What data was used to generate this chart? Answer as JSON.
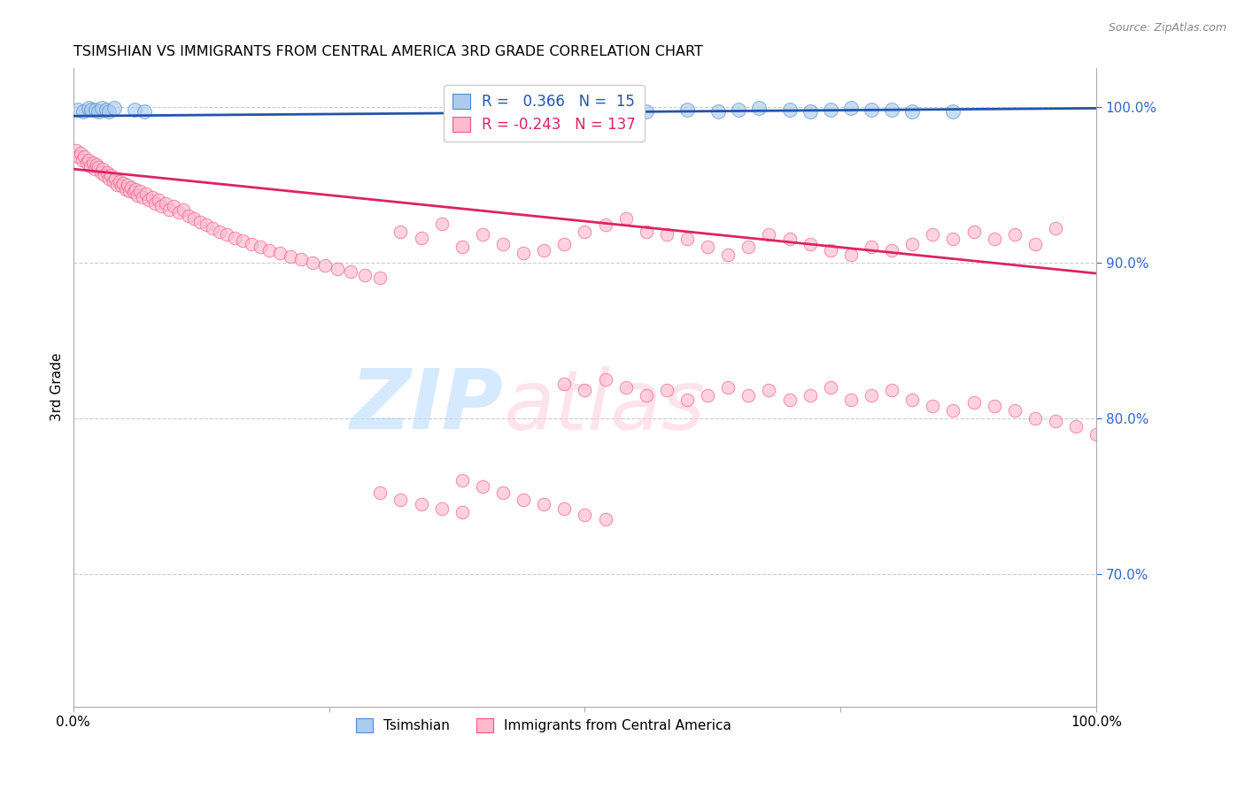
{
  "title": "TSIMSHIAN VS IMMIGRANTS FROM CENTRAL AMERICA 3RD GRADE CORRELATION CHART",
  "source": "Source: ZipAtlas.com",
  "ylabel": "3rd Grade",
  "xlim": [
    0.0,
    1.0
  ],
  "ylim": [
    0.615,
    1.025
  ],
  "right_yticks": [
    0.7,
    0.8,
    0.9,
    1.0
  ],
  "right_yticklabels": [
    "70.0%",
    "80.0%",
    "90.0%",
    "100.0%"
  ],
  "legend_color1": "#aaccee",
  "legend_color2": "#ffbbcc",
  "line_color1": "#2255aa",
  "line_color2": "#dd2266",
  "scatter_color1": "#aaccee",
  "scatter_color2": "#ffbbcc",
  "scatter_edge1": "#5588cc",
  "scatter_edge2": "#ee5588",
  "grid_color": "#cccccc",
  "blue_line_y0": 0.994,
  "blue_line_y1": 0.999,
  "pink_line_y0": 0.96,
  "pink_line_y1": 0.893,
  "blue_x": [
    0.005,
    0.01,
    0.015,
    0.018,
    0.022,
    0.025,
    0.028,
    0.032,
    0.035,
    0.04,
    0.06,
    0.07,
    0.56,
    0.6,
    0.63,
    0.65,
    0.67,
    0.7,
    0.72,
    0.74,
    0.76,
    0.78,
    0.8,
    0.82,
    0.86
  ],
  "blue_y": [
    0.998,
    0.997,
    0.999,
    0.998,
    0.998,
    0.997,
    0.999,
    0.998,
    0.997,
    0.999,
    0.998,
    0.997,
    0.997,
    0.998,
    0.997,
    0.998,
    0.999,
    0.998,
    0.997,
    0.998,
    0.999,
    0.998,
    0.998,
    0.997,
    0.997
  ],
  "pink_x": [
    0.003,
    0.005,
    0.007,
    0.009,
    0.011,
    0.013,
    0.015,
    0.017,
    0.019,
    0.021,
    0.023,
    0.025,
    0.027,
    0.029,
    0.031,
    0.033,
    0.035,
    0.037,
    0.039,
    0.041,
    0.043,
    0.045,
    0.047,
    0.049,
    0.051,
    0.053,
    0.055,
    0.057,
    0.059,
    0.061,
    0.063,
    0.065,
    0.068,
    0.071,
    0.074,
    0.077,
    0.08,
    0.083,
    0.086,
    0.09,
    0.094,
    0.098,
    0.103,
    0.108,
    0.113,
    0.118,
    0.124,
    0.13,
    0.136,
    0.143,
    0.15,
    0.158,
    0.166,
    0.174,
    0.183,
    0.192,
    0.202,
    0.212,
    0.223,
    0.234,
    0.246,
    0.258,
    0.271,
    0.285,
    0.3,
    0.32,
    0.34,
    0.36,
    0.38,
    0.4,
    0.42,
    0.44,
    0.46,
    0.48,
    0.5,
    0.52,
    0.54,
    0.56,
    0.58,
    0.6,
    0.62,
    0.64,
    0.66,
    0.68,
    0.7,
    0.72,
    0.74,
    0.76,
    0.78,
    0.8,
    0.82,
    0.84,
    0.86,
    0.88,
    0.9,
    0.92,
    0.94,
    0.96,
    0.48,
    0.5,
    0.52,
    0.54,
    0.56,
    0.58,
    0.6,
    0.62,
    0.64,
    0.66,
    0.68,
    0.7,
    0.72,
    0.74,
    0.76,
    0.78,
    0.8,
    0.82,
    0.84,
    0.86,
    0.88,
    0.9,
    0.92,
    0.94,
    0.96,
    0.98,
    1.0,
    0.38,
    0.4,
    0.42,
    0.44,
    0.46,
    0.48,
    0.5,
    0.52,
    0.3,
    0.32,
    0.34,
    0.36,
    0.38
  ],
  "pink_y": [
    0.972,
    0.968,
    0.97,
    0.966,
    0.968,
    0.964,
    0.966,
    0.962,
    0.964,
    0.96,
    0.963,
    0.961,
    0.958,
    0.96,
    0.956,
    0.958,
    0.954,
    0.956,
    0.952,
    0.954,
    0.95,
    0.952,
    0.949,
    0.951,
    0.947,
    0.95,
    0.946,
    0.948,
    0.945,
    0.947,
    0.943,
    0.946,
    0.942,
    0.944,
    0.94,
    0.942,
    0.938,
    0.94,
    0.936,
    0.938,
    0.934,
    0.936,
    0.932,
    0.934,
    0.93,
    0.928,
    0.926,
    0.924,
    0.922,
    0.92,
    0.918,
    0.916,
    0.914,
    0.912,
    0.91,
    0.908,
    0.906,
    0.904,
    0.902,
    0.9,
    0.898,
    0.896,
    0.894,
    0.892,
    0.89,
    0.92,
    0.916,
    0.925,
    0.91,
    0.918,
    0.912,
    0.906,
    0.908,
    0.912,
    0.92,
    0.924,
    0.928,
    0.92,
    0.918,
    0.915,
    0.91,
    0.905,
    0.91,
    0.918,
    0.915,
    0.912,
    0.908,
    0.905,
    0.91,
    0.908,
    0.912,
    0.918,
    0.915,
    0.92,
    0.915,
    0.918,
    0.912,
    0.922,
    0.822,
    0.818,
    0.825,
    0.82,
    0.815,
    0.818,
    0.812,
    0.815,
    0.82,
    0.815,
    0.818,
    0.812,
    0.815,
    0.82,
    0.812,
    0.815,
    0.818,
    0.812,
    0.808,
    0.805,
    0.81,
    0.808,
    0.805,
    0.8,
    0.798,
    0.795,
    0.79,
    0.76,
    0.756,
    0.752,
    0.748,
    0.745,
    0.742,
    0.738,
    0.735,
    0.752,
    0.748,
    0.745,
    0.742,
    0.74
  ]
}
